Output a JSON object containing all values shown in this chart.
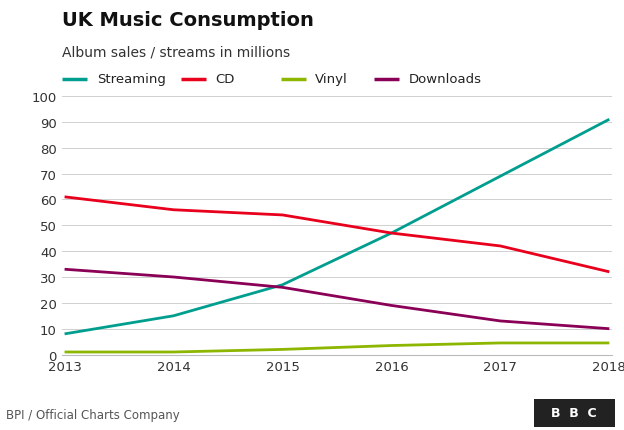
{
  "title": "UK Music Consumption",
  "subtitle": "Album sales / streams in millions",
  "footer": "BPI / Official Charts Company",
  "years": [
    2013,
    2014,
    2015,
    2016,
    2017,
    2018
  ],
  "series": {
    "Streaming": {
      "values": [
        8,
        15,
        27,
        47,
        69,
        91
      ],
      "color": "#009e8e"
    },
    "CD": {
      "values": [
        61,
        56,
        54,
        47,
        42,
        32
      ],
      "color": "#e8001c"
    },
    "Vinyl": {
      "values": [
        1,
        1,
        2,
        3.5,
        4.5,
        4.5
      ],
      "color": "#8db600"
    },
    "Downloads": {
      "values": [
        33,
        30,
        26,
        19,
        13,
        10
      ],
      "color": "#8b0057"
    }
  },
  "ylim": [
    0,
    100
  ],
  "yticks": [
    0,
    10,
    20,
    30,
    40,
    50,
    60,
    70,
    80,
    90,
    100
  ],
  "background_color": "#ffffff",
  "grid_color": "#d0d0d0",
  "title_fontsize": 14,
  "subtitle_fontsize": 10,
  "axis_fontsize": 9.5,
  "legend_fontsize": 9.5,
  "footer_fontsize": 8.5,
  "line_width": 2.0
}
